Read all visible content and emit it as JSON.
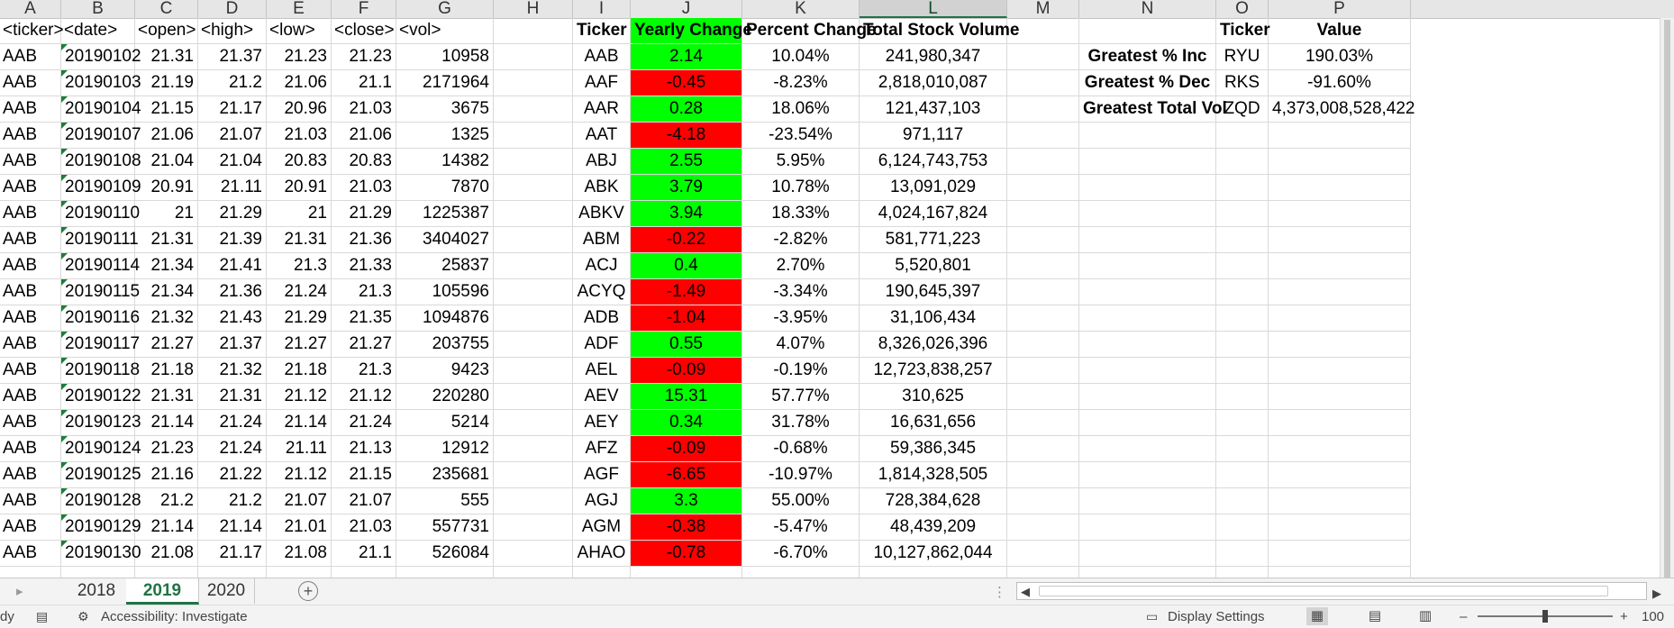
{
  "columns": [
    "A",
    "B",
    "C",
    "D",
    "E",
    "F",
    "G",
    "H",
    "I",
    "J",
    "K",
    "L",
    "M",
    "N",
    "O",
    "P"
  ],
  "selected_column": "L",
  "raw_headers": [
    "<ticker>",
    "<date>",
    "<open>",
    "<high>",
    "<low>",
    "<close>",
    "<vol>"
  ],
  "raw_rows": [
    [
      "AAB",
      "20190102",
      "21.31",
      "21.37",
      "21.23",
      "21.23",
      "10958"
    ],
    [
      "AAB",
      "20190103",
      "21.19",
      "21.2",
      "21.06",
      "21.1",
      "2171964"
    ],
    [
      "AAB",
      "20190104",
      "21.15",
      "21.17",
      "20.96",
      "21.03",
      "3675"
    ],
    [
      "AAB",
      "20190107",
      "21.06",
      "21.07",
      "21.03",
      "21.06",
      "1325"
    ],
    [
      "AAB",
      "20190108",
      "21.04",
      "21.04",
      "20.83",
      "20.83",
      "14382"
    ],
    [
      "AAB",
      "20190109",
      "20.91",
      "21.11",
      "20.91",
      "21.03",
      "7870"
    ],
    [
      "AAB",
      "20190110",
      "21",
      "21.29",
      "21",
      "21.29",
      "1225387"
    ],
    [
      "AAB",
      "20190111",
      "21.31",
      "21.39",
      "21.31",
      "21.36",
      "3404027"
    ],
    [
      "AAB",
      "20190114",
      "21.34",
      "21.41",
      "21.3",
      "21.33",
      "25837"
    ],
    [
      "AAB",
      "20190115",
      "21.34",
      "21.36",
      "21.24",
      "21.3",
      "105596"
    ],
    [
      "AAB",
      "20190116",
      "21.32",
      "21.43",
      "21.29",
      "21.35",
      "1094876"
    ],
    [
      "AAB",
      "20190117",
      "21.27",
      "21.37",
      "21.27",
      "21.27",
      "203755"
    ],
    [
      "AAB",
      "20190118",
      "21.18",
      "21.32",
      "21.18",
      "21.3",
      "9423"
    ],
    [
      "AAB",
      "20190122",
      "21.31",
      "21.31",
      "21.12",
      "21.12",
      "220280"
    ],
    [
      "AAB",
      "20190123",
      "21.14",
      "21.24",
      "21.14",
      "21.24",
      "5214"
    ],
    [
      "AAB",
      "20190124",
      "21.23",
      "21.24",
      "21.11",
      "21.13",
      "12912"
    ],
    [
      "AAB",
      "20190125",
      "21.16",
      "21.22",
      "21.12",
      "21.15",
      "235681"
    ],
    [
      "AAB",
      "20190128",
      "21.2",
      "21.2",
      "21.07",
      "21.07",
      "555"
    ],
    [
      "AAB",
      "20190129",
      "21.14",
      "21.14",
      "21.01",
      "21.03",
      "557731"
    ],
    [
      "AAB",
      "20190130",
      "21.08",
      "21.17",
      "21.08",
      "21.1",
      "526084"
    ]
  ],
  "summary_headers": [
    "Ticker",
    "Yearly Change",
    "Percent Change",
    "Total Stock Volume"
  ],
  "summary_rows": [
    [
      "AAB",
      "2.14",
      "10.04%",
      "241,980,347",
      "positive"
    ],
    [
      "AAF",
      "-0.45",
      "-8.23%",
      "2,818,010,087",
      "negative"
    ],
    [
      "AAR",
      "0.28",
      "18.06%",
      "121,437,103",
      "positive"
    ],
    [
      "AAT",
      "-4.18",
      "-23.54%",
      "971,117",
      "negative"
    ],
    [
      "ABJ",
      "2.55",
      "5.95%",
      "6,124,743,753",
      "positive"
    ],
    [
      "ABK",
      "3.79",
      "10.78%",
      "13,091,029",
      "positive"
    ],
    [
      "ABKV",
      "3.94",
      "18.33%",
      "4,024,167,824",
      "positive"
    ],
    [
      "ABM",
      "-0.22",
      "-2.82%",
      "581,771,223",
      "negative"
    ],
    [
      "ACJ",
      "0.4",
      "2.70%",
      "5,520,801",
      "positive"
    ],
    [
      "ACYQ",
      "-1.49",
      "-3.34%",
      "190,645,397",
      "negative"
    ],
    [
      "ADB",
      "-1.04",
      "-3.95%",
      "31,106,434",
      "negative"
    ],
    [
      "ADF",
      "0.55",
      "4.07%",
      "8,326,026,396",
      "positive"
    ],
    [
      "AEL",
      "-0.09",
      "-0.19%",
      "12,723,838,257",
      "negative"
    ],
    [
      "AEV",
      "15.31",
      "57.77%",
      "310,625",
      "positive"
    ],
    [
      "AEY",
      "0.34",
      "31.78%",
      "16,631,656",
      "positive"
    ],
    [
      "AFZ",
      "-0.09",
      "-0.68%",
      "59,386,345",
      "negative"
    ],
    [
      "AGF",
      "-6.65",
      "-10.97%",
      "1,814,328,505",
      "negative"
    ],
    [
      "AGJ",
      "3.3",
      "55.00%",
      "728,384,628",
      "positive"
    ],
    [
      "AGM",
      "-0.38",
      "-5.47%",
      "48,439,209",
      "negative"
    ],
    [
      "AHAO",
      "-0.78",
      "-6.70%",
      "10,127,862,044",
      "negative"
    ]
  ],
  "greatest_headers": [
    "Ticker",
    "Value"
  ],
  "greatest_rows": [
    [
      "Greatest % Inc",
      "RYU",
      "190.03%"
    ],
    [
      "Greatest % Dec",
      "RKS",
      "-91.60%"
    ],
    [
      "Greatest Total Vol",
      "ZQD",
      "4,373,008,528,422"
    ]
  ],
  "tabs": [
    "2018",
    "2019",
    "2020"
  ],
  "active_tab": "2019",
  "status": {
    "ready": "dy",
    "accessibility": "Accessibility: Investigate",
    "display_settings": "Display Settings",
    "zoom": "100"
  },
  "colors": {
    "positive": "#00ff00",
    "negative": "#ff0000",
    "accent": "#217346"
  },
  "icons": [
    "add-sheet-icon",
    "scroll-left-icon",
    "scroll-right-icon",
    "macro-icon",
    "accessibility-icon",
    "display-settings-icon",
    "normal-view-icon",
    "page-layout-icon",
    "page-break-icon"
  ]
}
